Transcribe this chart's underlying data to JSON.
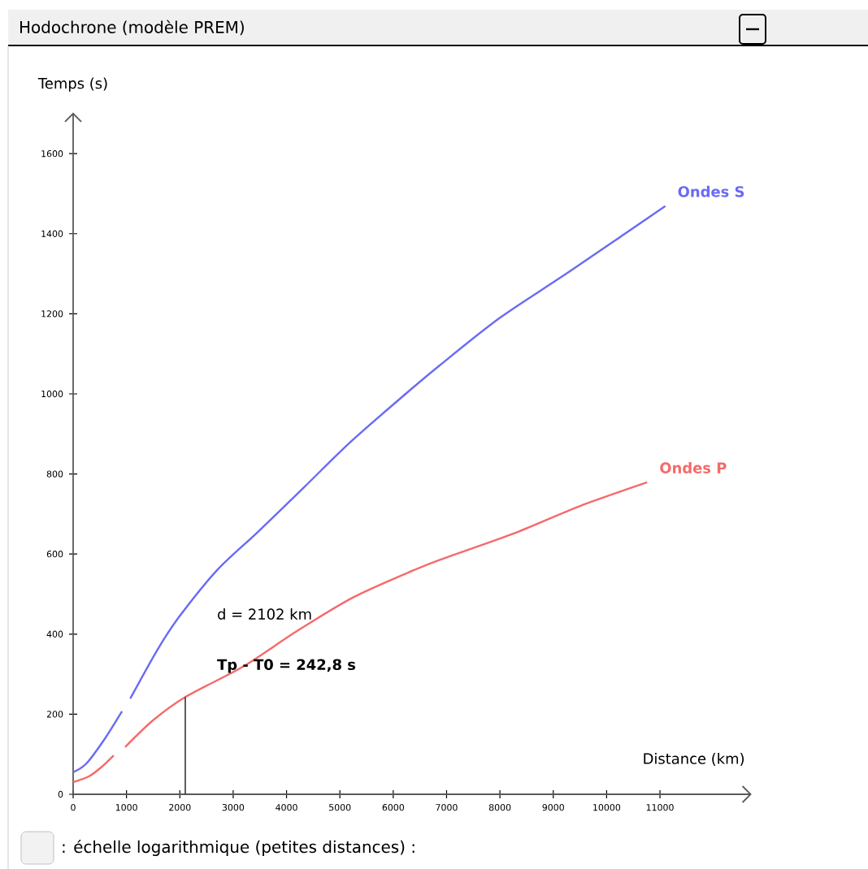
{
  "chart_data": {
    "type": "line",
    "title": "Hodochrone (modèle PREM)",
    "xlabel": "Distance (km)",
    "ylabel": "Temps (s)",
    "xlim": [
      0,
      12700
    ],
    "ylim": [
      0,
      1700
    ],
    "xticks": [
      0,
      1000,
      2000,
      3000,
      4000,
      5000,
      6000,
      7000,
      8000,
      9000,
      10000,
      11000
    ],
    "yticks": [
      0,
      200,
      400,
      600,
      800,
      1000,
      1200,
      1400,
      1600
    ],
    "series": [
      {
        "name": "Ondes S",
        "color": "#6a6af5",
        "x": [
          0,
          250,
          600,
          915,
          1000,
          1070,
          1580,
          1980,
          2700,
          3445,
          4330,
          5200,
          6250,
          6860,
          8000,
          9300,
          11100
        ],
        "values": [
          55,
          77,
          140,
          207,
          null,
          239,
          361,
          442,
          560,
          653,
          767,
          880,
          1002,
          1070,
          1190,
          1305,
          1469
        ]
      },
      {
        "name": "Ondes P",
        "color": "#f56a6a",
        "x": [
          0,
          300,
          550,
          760,
          870,
          975,
          1500,
          2102,
          3200,
          4200,
          5240,
          6250,
          6860,
          8290,
          9500,
          10760
        ],
        "values": [
          30,
          45,
          70,
          97,
          null,
          118,
          185,
          243,
          320,
          408,
          491,
          552,
          585,
          653,
          720,
          779
        ]
      },
      {
        "type": "line",
        "color": "#333333",
        "x": [
          2102,
          2102
        ],
        "values": [
          0,
          243
        ]
      }
    ],
    "annotations": [
      "d = 2102 km",
      "**Tp - T0 = 242,8 s**",
      ": échelle logarithmique (petites distances) :"
    ],
    "line_style": "solid",
    "marker": "none",
    "grid": false
  }
}
